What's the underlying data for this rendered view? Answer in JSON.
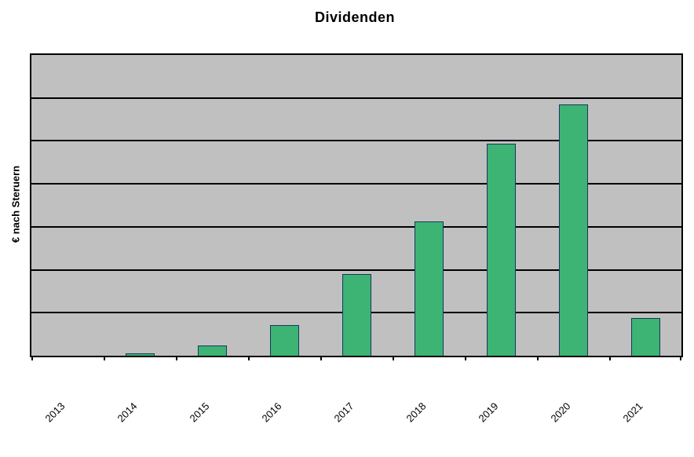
{
  "chart_data": {
    "type": "bar",
    "title": "Dividenden",
    "xlabel": "",
    "ylabel": "€ nach Steruern",
    "categories": [
      "2013",
      "2014",
      "2015",
      "2016",
      "2017",
      "2018",
      "2019",
      "2020",
      "2021"
    ],
    "values": [
      0,
      0.05,
      0.23,
      0.72,
      1.9,
      3.12,
      4.94,
      5.84,
      0.87
    ],
    "value_units": "gridline units (value axis has no visible numeric tick labels; plot height is divided into 7 equal gridline intervals)",
    "ylim": [
      0,
      7
    ],
    "gridline_divisions": 7,
    "grid": "horizontal",
    "legend": "none",
    "x_label_rotation_deg": -45,
    "colors": {
      "bar_fill": "#3db374",
      "bar_border": "#17375e",
      "plot_background": "#c0c0c0",
      "gridline": "#000000",
      "axis": "#000000",
      "page_background": "#ffffff",
      "text": "#000000"
    }
  }
}
